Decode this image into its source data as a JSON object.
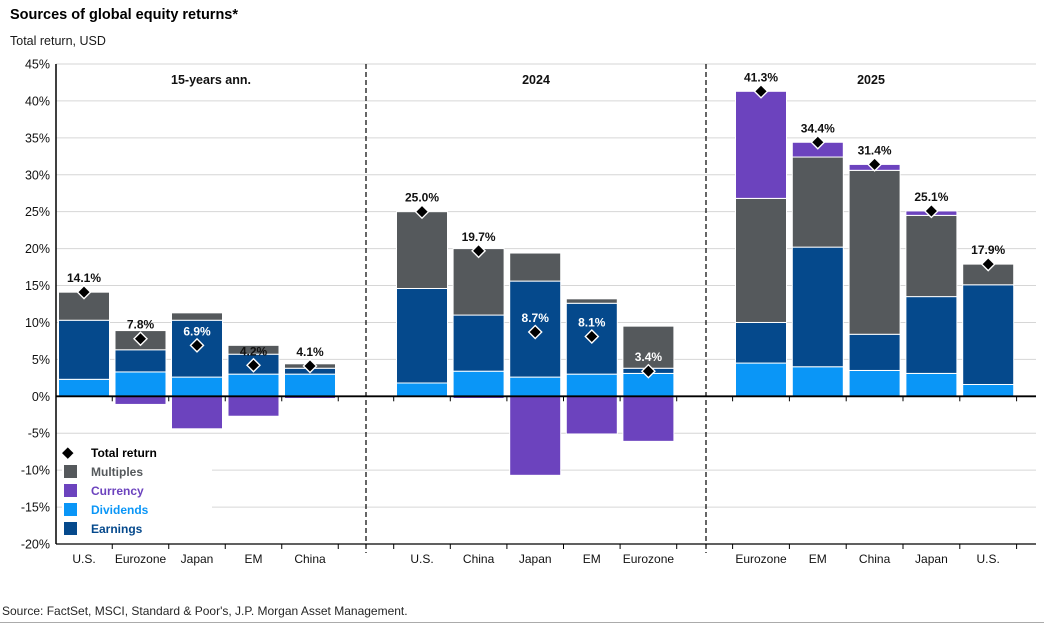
{
  "title": "Sources of global equity returns*",
  "subtitle": "Total return, USD",
  "source": "Source: FactSet, MSCI, Standard & Poor's, J.P. Morgan Asset Management.",
  "colors": {
    "multiples": "#55595C",
    "currency": "#6C43BE",
    "dividends": "#0A96F7",
    "earnings": "#05498C",
    "marker": "#000000",
    "gridline": "#D6D6D6",
    "axis": "#000000"
  },
  "legend": [
    {
      "label": "Total return",
      "icon": "diamond-icon",
      "color": "#000000"
    },
    {
      "label": "Multiples",
      "icon": "square-icon",
      "color": "#55595C"
    },
    {
      "label": "Currency",
      "icon": "square-icon",
      "color": "#6C43BE"
    },
    {
      "label": "Dividends",
      "icon": "square-icon",
      "color": "#0A96F7"
    },
    {
      "label": "Earnings",
      "icon": "square-icon",
      "color": "#05498C"
    }
  ],
  "chart_data": {
    "type": "bar",
    "stacked": true,
    "ylim": [
      -20,
      45
    ],
    "ytick_step": 5,
    "ytick_suffix": "%",
    "grid": true,
    "legend_position": "bottom-left-inside",
    "series_stack_order": [
      "dividends",
      "earnings",
      "multiples",
      "currency"
    ],
    "panels": [
      {
        "header": "15-years ann.",
        "bars": [
          {
            "label": "U.S.",
            "total": 14.1,
            "dividends": 2.3,
            "earnings": 8.0,
            "multiples": 3.8,
            "currency": 0.0,
            "label_style": "dark"
          },
          {
            "label": "Eurozone",
            "total": 7.8,
            "dividends": 3.3,
            "earnings": 3.0,
            "multiples": 2.6,
            "currency": -1.1,
            "label_style": "dark"
          },
          {
            "label": "Japan",
            "total": 6.9,
            "dividends": 2.6,
            "earnings": 7.7,
            "multiples": 1.0,
            "currency": -4.4,
            "label_style": "light"
          },
          {
            "label": "EM",
            "total": 4.2,
            "dividends": 3.0,
            "earnings": 2.7,
            "multiples": 1.2,
            "currency": -2.7,
            "label_style": "dark"
          },
          {
            "label": "China",
            "total": 4.1,
            "dividends": 3.0,
            "earnings": 0.8,
            "multiples": 0.6,
            "currency": -0.3,
            "label_style": "dark"
          }
        ]
      },
      {
        "header": "2024",
        "bars": [
          {
            "label": "U.S.",
            "total": 25.0,
            "dividends": 1.8,
            "earnings": 12.8,
            "multiples": 10.4,
            "currency": 0.0,
            "label_style": "dark"
          },
          {
            "label": "China",
            "total": 19.7,
            "dividends": 3.4,
            "earnings": 7.6,
            "multiples": 9.0,
            "currency": -0.3,
            "label_style": "dark"
          },
          {
            "label": "Japan",
            "total": 8.7,
            "dividends": 2.6,
            "earnings": 13.0,
            "multiples": 3.8,
            "currency": -10.7,
            "label_style": "light"
          },
          {
            "label": "EM",
            "total": 8.1,
            "dividends": 3.0,
            "earnings": 9.6,
            "multiples": 0.6,
            "currency": -5.1,
            "label_style": "light"
          },
          {
            "label": "Eurozone",
            "total": 3.4,
            "dividends": 3.1,
            "earnings": 0.7,
            "multiples": 5.7,
            "currency": -6.1,
            "label_style": "light"
          }
        ]
      },
      {
        "header": "2025",
        "bars": [
          {
            "label": "Eurozone",
            "total": 41.3,
            "dividends": 4.5,
            "earnings": 5.5,
            "multiples": 16.8,
            "currency": 14.5,
            "label_style": "dark"
          },
          {
            "label": "EM",
            "total": 34.4,
            "dividends": 4.0,
            "earnings": 16.2,
            "multiples": 12.2,
            "currency": 2.0,
            "label_style": "dark"
          },
          {
            "label": "China",
            "total": 31.4,
            "dividends": 3.5,
            "earnings": 4.9,
            "multiples": 22.2,
            "currency": 0.8,
            "label_style": "dark"
          },
          {
            "label": "Japan",
            "total": 25.1,
            "dividends": 3.1,
            "earnings": 10.4,
            "multiples": 11.0,
            "currency": 0.6,
            "label_style": "dark"
          },
          {
            "label": "U.S.",
            "total": 17.9,
            "dividends": 1.6,
            "earnings": 13.5,
            "multiples": 2.8,
            "currency": 0.0,
            "label_style": "dark"
          }
        ]
      }
    ]
  }
}
